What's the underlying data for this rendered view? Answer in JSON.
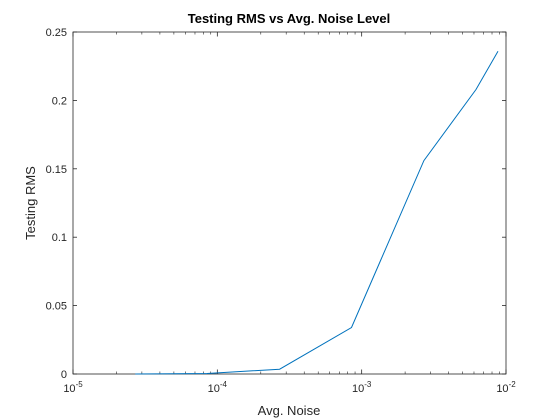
{
  "chart_data": {
    "type": "line",
    "title": "Testing RMS vs Avg. Noise Level",
    "xlabel": "Avg. Noise",
    "ylabel": "Testing RMS",
    "x_scale": "log",
    "xlim": [
      1e-05,
      0.01
    ],
    "ylim": [
      0,
      0.25
    ],
    "grid": false,
    "x_ticks": [
      {
        "value": 1e-05,
        "base": "10",
        "exp": "-5"
      },
      {
        "value": 0.0001,
        "base": "10",
        "exp": "-4"
      },
      {
        "value": 0.001,
        "base": "10",
        "exp": "-3"
      },
      {
        "value": 0.01,
        "base": "10",
        "exp": "-2"
      }
    ],
    "y_ticks": [
      {
        "value": 0,
        "label": "0"
      },
      {
        "value": 0.05,
        "label": "0.05"
      },
      {
        "value": 0.1,
        "label": "0.1"
      },
      {
        "value": 0.15,
        "label": "0.15"
      },
      {
        "value": 0.2,
        "label": "0.2"
      },
      {
        "value": 0.25,
        "label": "0.25"
      }
    ],
    "series": [
      {
        "color": "#0072bd",
        "x": [
          2.7e-05,
          8.5e-05,
          0.00027,
          0.00085,
          0.0027,
          0.0062,
          0.0088
        ],
        "y": [
          0.0,
          0.0004,
          0.0035,
          0.034,
          0.156,
          0.208,
          0.236
        ]
      }
    ]
  }
}
